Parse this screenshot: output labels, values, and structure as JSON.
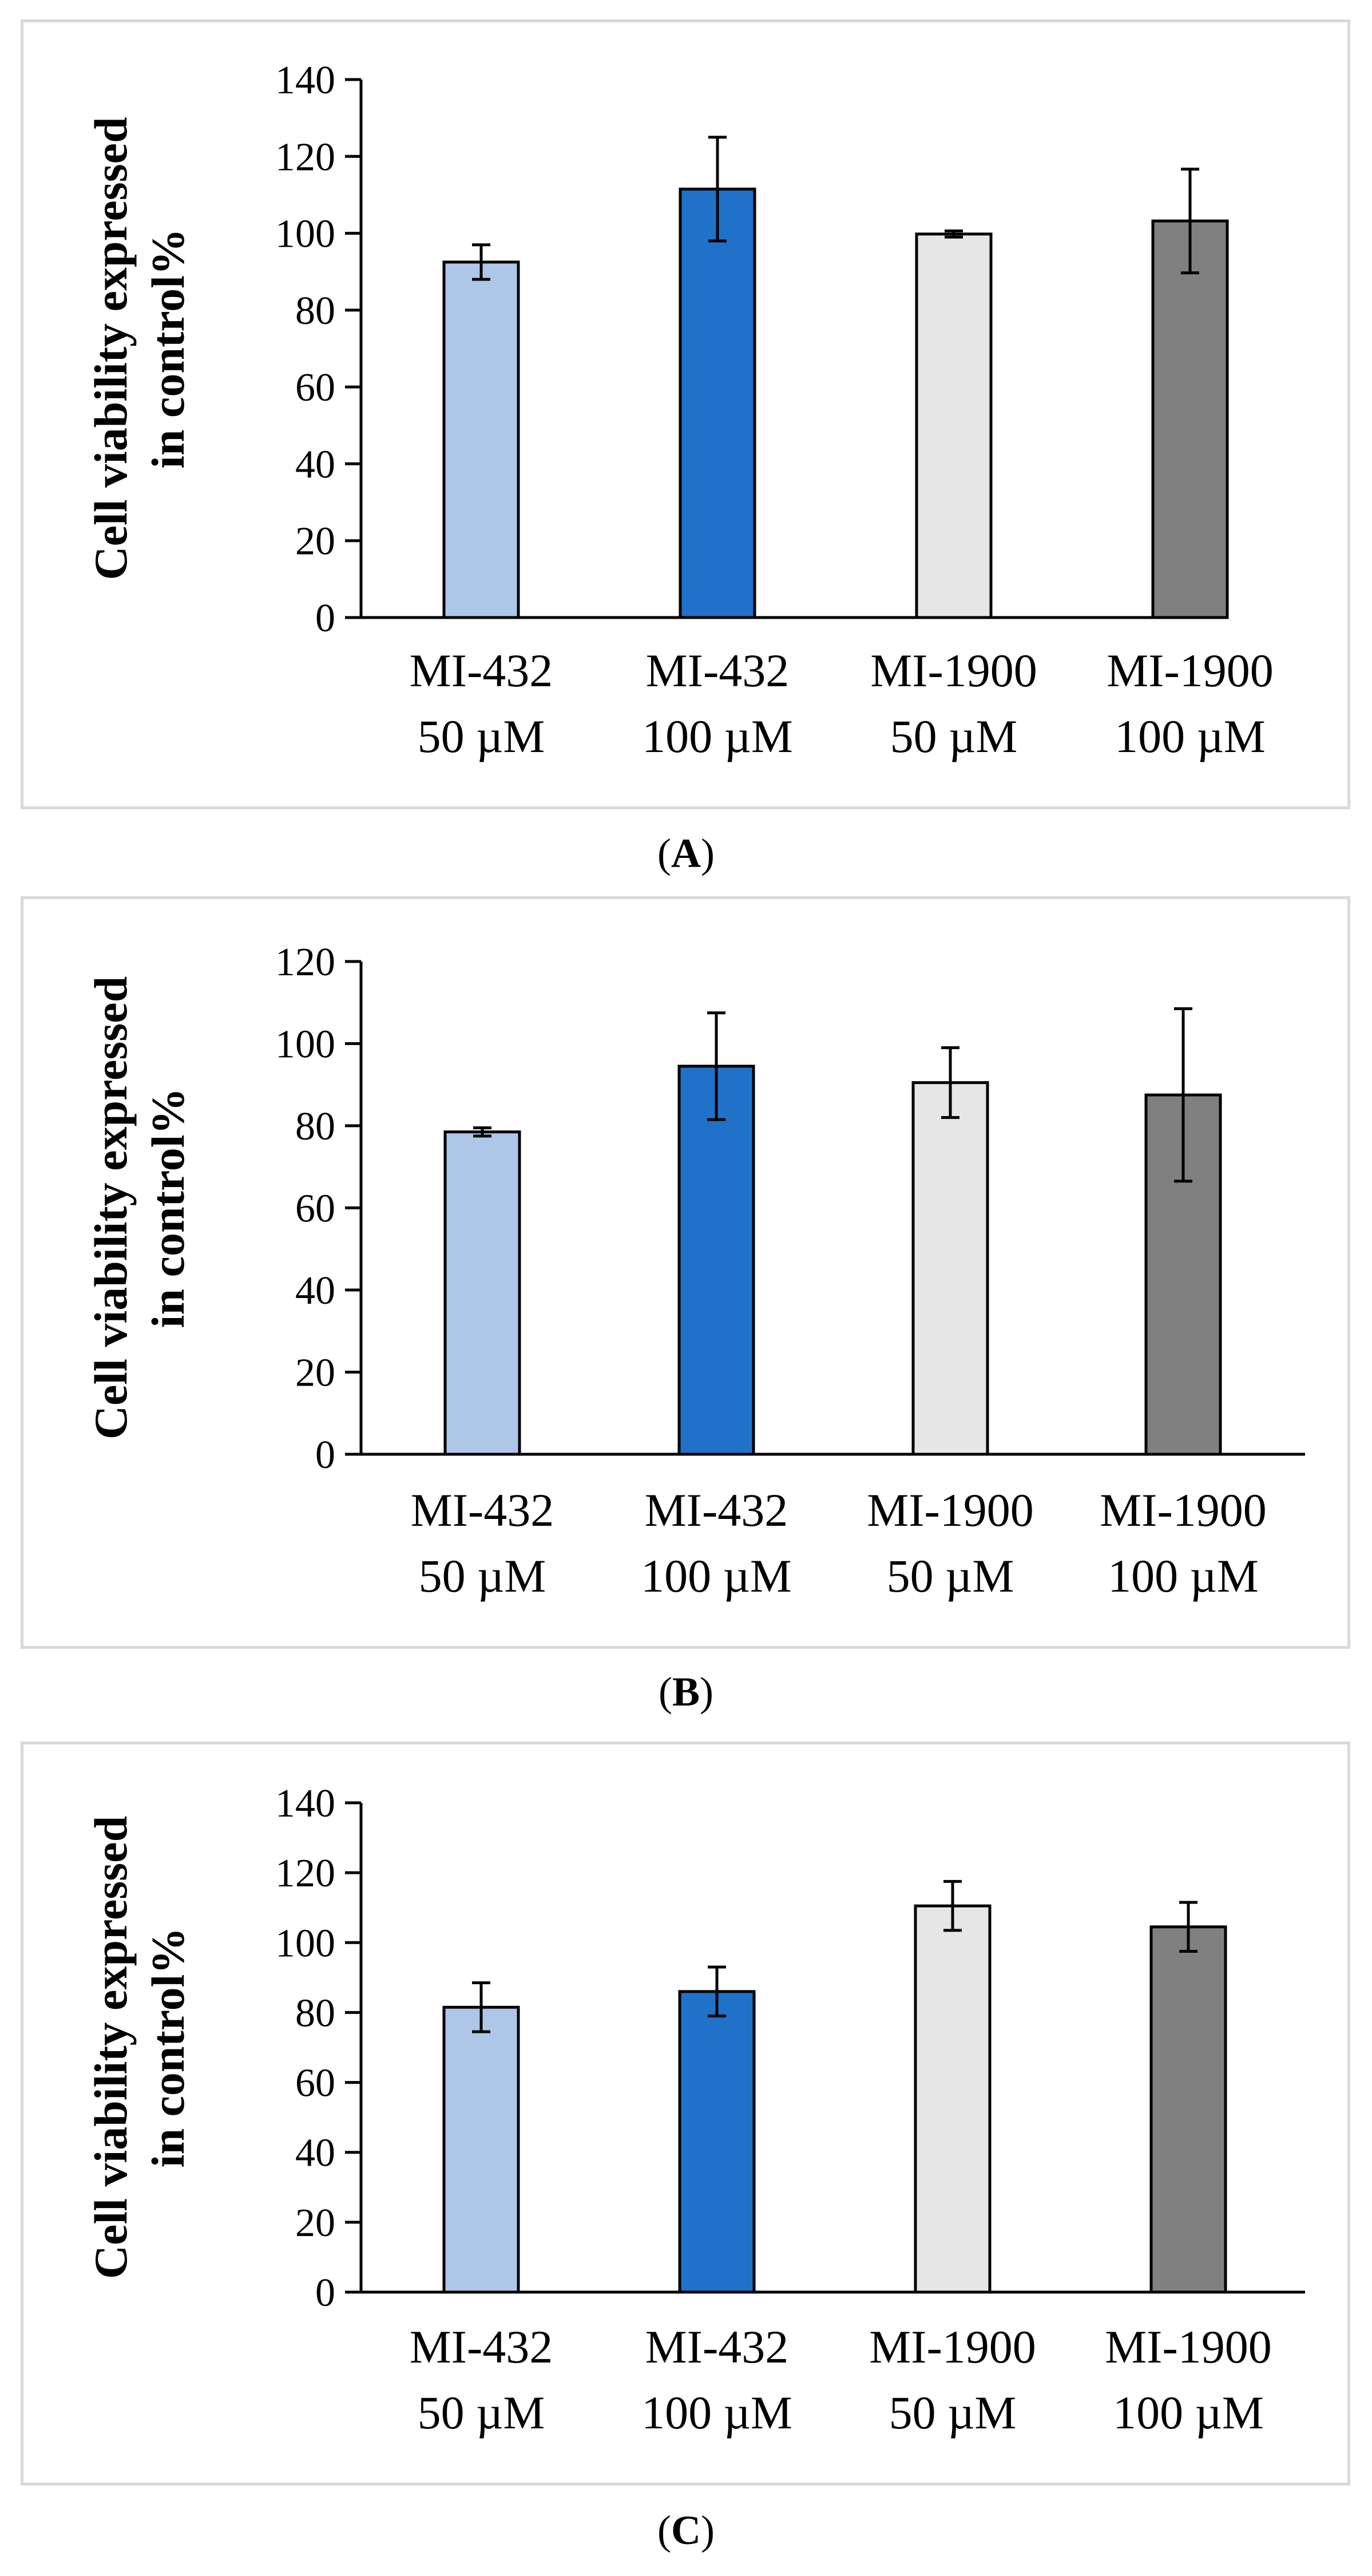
{
  "chart_data": [
    {
      "type": "bar",
      "panel": "A",
      "ylabel_line1": "Cell viability expressed",
      "ylabel_line2": "in control%",
      "ylim": [
        0,
        140
      ],
      "yticks": [
        0,
        20,
        40,
        60,
        80,
        100,
        120,
        140
      ],
      "categories": [
        {
          "line1": "MI-432",
          "line2": "50 µM"
        },
        {
          "line1": "MI-432",
          "line2": "100 µM"
        },
        {
          "line1": "MI-1900",
          "line2": "50 µM"
        },
        {
          "line1": "MI-1900",
          "line2": "100 µM"
        }
      ],
      "values": [
        92.5,
        111.5,
        99.8,
        103.2
      ],
      "errors": [
        4.5,
        13.5,
        0.8,
        13.5
      ],
      "colors": [
        "#aec7e8",
        "#1f72c8",
        "#e6e6e6",
        "#808080"
      ]
    },
    {
      "type": "bar",
      "panel": "B",
      "ylabel_line1": "Cell viability expressed",
      "ylabel_line2": "in control%",
      "ylim": [
        0,
        120
      ],
      "yticks": [
        0,
        20,
        40,
        60,
        80,
        100,
        120
      ],
      "categories": [
        {
          "line1": "MI-432",
          "line2": "50 µM"
        },
        {
          "line1": "MI-432",
          "line2": "100 µM"
        },
        {
          "line1": "MI-1900",
          "line2": "50 µM"
        },
        {
          "line1": "MI-1900",
          "line2": "100 µM"
        }
      ],
      "values": [
        78.5,
        94.5,
        90.5,
        87.5
      ],
      "errors": [
        1.0,
        13.0,
        8.5,
        21.0
      ],
      "colors": [
        "#aec7e8",
        "#1f72c8",
        "#e6e6e6",
        "#808080"
      ]
    },
    {
      "type": "bar",
      "panel": "C",
      "ylabel_line1": "Cell viability expressed",
      "ylabel_line2": "in control%",
      "ylim": [
        0,
        140
      ],
      "yticks": [
        0,
        20,
        40,
        60,
        80,
        100,
        120,
        140
      ],
      "categories": [
        {
          "line1": "MI-432",
          "line2": "50 µM"
        },
        {
          "line1": "MI-432",
          "line2": "100 µM"
        },
        {
          "line1": "MI-1900",
          "line2": "50 µM"
        },
        {
          "line1": "MI-1900",
          "line2": "100 µM"
        }
      ],
      "values": [
        81.5,
        86.0,
        110.5,
        104.5
      ],
      "errors": [
        7.0,
        7.0,
        7.0,
        7.0
      ],
      "colors": [
        "#aec7e8",
        "#1f72c8",
        "#e6e6e6",
        "#808080"
      ]
    }
  ],
  "labels": {
    "a": "A",
    "b": "B",
    "c": "C"
  }
}
